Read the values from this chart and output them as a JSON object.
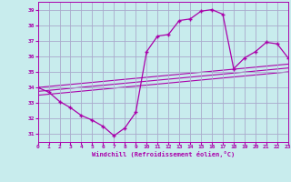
{
  "title": "",
  "xlabel": "Windchill (Refroidissement éolien,°C)",
  "ylabel": "",
  "background_color": "#c8eced",
  "grid_color": "#aaaacc",
  "line_color": "#aa00aa",
  "xlim": [
    0,
    23
  ],
  "ylim": [
    30.5,
    39.5
  ],
  "yticks": [
    31,
    32,
    33,
    34,
    35,
    36,
    37,
    38,
    39
  ],
  "xticks": [
    0,
    1,
    2,
    3,
    4,
    5,
    6,
    7,
    8,
    9,
    10,
    11,
    12,
    13,
    14,
    15,
    16,
    17,
    18,
    19,
    20,
    21,
    22,
    23
  ],
  "curve1_x": [
    0,
    1,
    2,
    3,
    4,
    5,
    6,
    7,
    8,
    9,
    10,
    11,
    12,
    13,
    14,
    15,
    16,
    17,
    18,
    19,
    20,
    21,
    22,
    23
  ],
  "curve1_y": [
    34.0,
    33.7,
    33.1,
    32.7,
    32.2,
    31.9,
    31.5,
    30.9,
    31.4,
    32.4,
    36.3,
    37.3,
    37.4,
    38.3,
    38.4,
    38.9,
    39.0,
    38.7,
    35.2,
    35.9,
    36.3,
    36.9,
    36.8,
    35.9
  ],
  "trend1_x": [
    0,
    23
  ],
  "trend1_y": [
    34.0,
    35.5
  ],
  "trend2_x": [
    0,
    23
  ],
  "trend2_y": [
    33.75,
    35.25
  ],
  "trend3_x": [
    0,
    23
  ],
  "trend3_y": [
    33.5,
    35.0
  ]
}
